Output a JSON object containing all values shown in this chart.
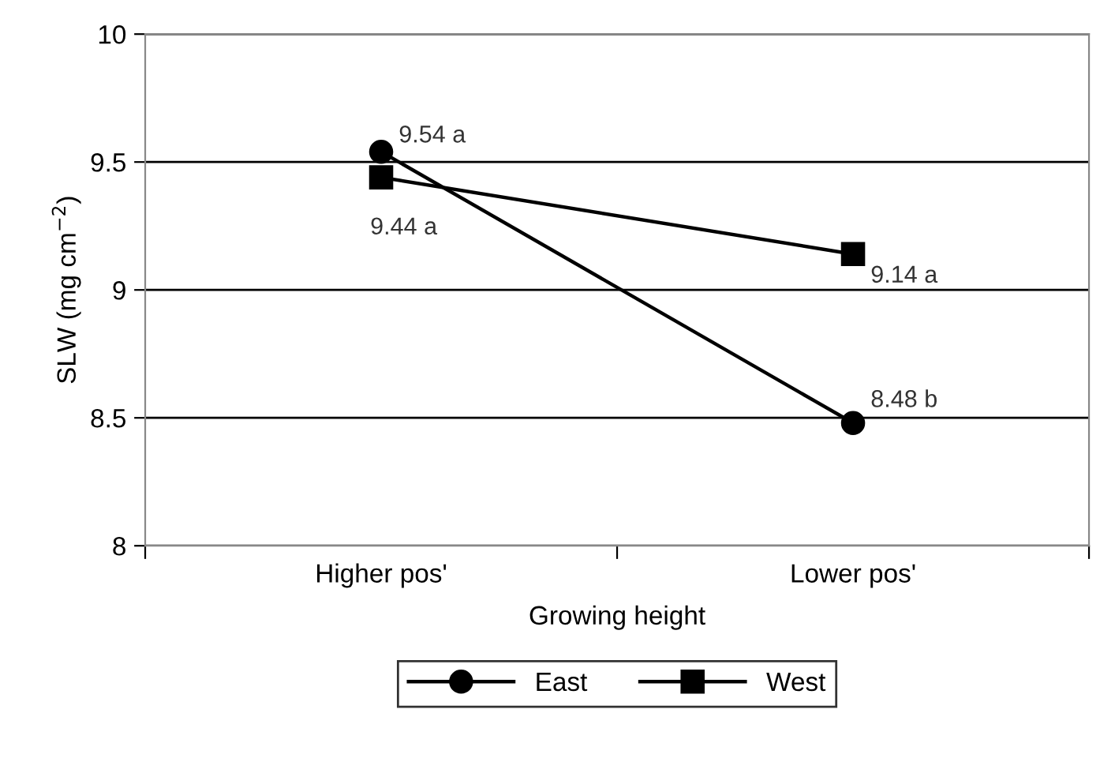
{
  "chart_data": {
    "type": "line",
    "xlabel": "Growing height",
    "ylabel": "SLW (mg cm$^{−2}$)",
    "categories": [
      "Higher pos'",
      "Lower pos'"
    ],
    "series": [
      {
        "name": "East",
        "color": "#000000",
        "marker": "circle",
        "values": [
          9.54,
          8.48
        ],
        "value_labels": [
          "9.54 a",
          "8.48 b"
        ]
      },
      {
        "name": "West",
        "color": "#000000",
        "marker": "square",
        "values": [
          9.44,
          9.14
        ],
        "value_labels": [
          "9.44 a",
          "9.14 a"
        ]
      }
    ],
    "ylim": [
      8,
      10
    ],
    "yticks": [
      8,
      8.5,
      9,
      9.5,
      10
    ],
    "grid": "y",
    "legend": "bottom",
    "line_style": "solid"
  }
}
